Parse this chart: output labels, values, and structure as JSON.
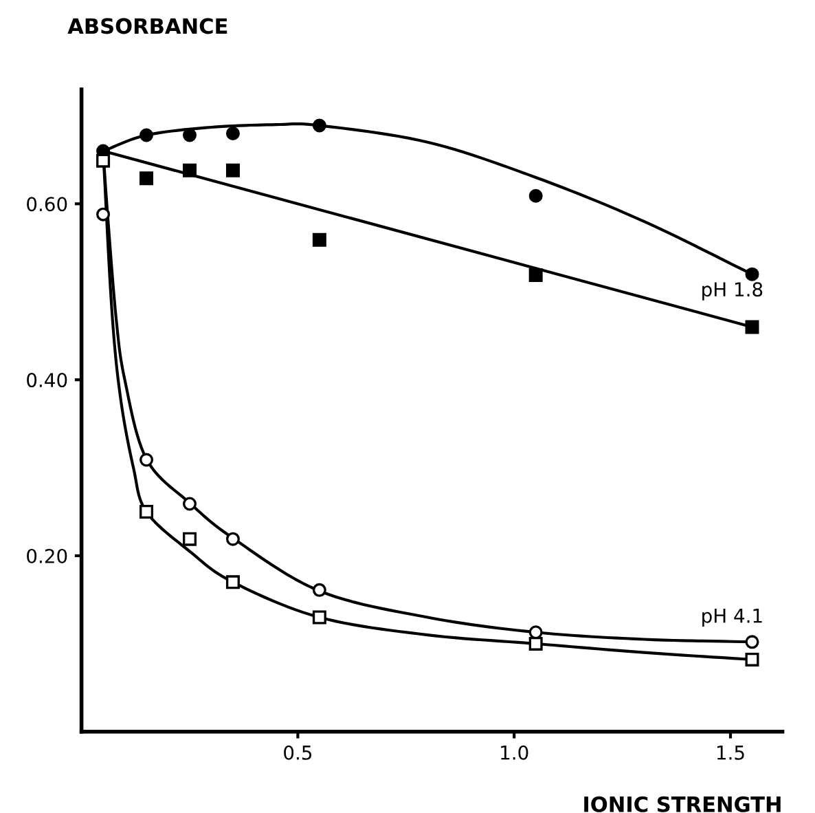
{
  "chart_data": {
    "type": "scatter",
    "xlabel": "IONIC STRENGTH",
    "ylabel": "ABSORBANCE",
    "xlim": [
      0,
      1.62
    ],
    "ylim": [
      0,
      0.73
    ],
    "xticks": [
      {
        "value": 0.5,
        "label": "0.5"
      },
      {
        "value": 1.0,
        "label": "1.0"
      },
      {
        "value": 1.5,
        "label": "1.5"
      }
    ],
    "yticks": [
      {
        "value": 0.2,
        "label": "0.20"
      },
      {
        "value": 0.4,
        "label": "0.40"
      },
      {
        "value": 0.6,
        "label": "0.60"
      }
    ],
    "grid": false,
    "x": [
      0.05,
      0.15,
      0.25,
      0.35,
      0.55,
      1.05,
      1.55
    ],
    "series": [
      {
        "color": "#000000",
        "marker": "circle",
        "values": [
          0.66,
          0.678,
          0.678,
          0.68,
          0.689,
          0.609,
          0.52
        ]
      },
      {
        "color": "#000000",
        "marker": "square",
        "values": [
          null,
          0.629,
          0.638,
          0.638,
          0.559,
          0.519,
          0.46
        ]
      },
      {
        "color": "#ffffff",
        "marker": "circle",
        "values": [
          0.588,
          0.309,
          0.259,
          0.219,
          0.161,
          0.113,
          0.102
        ]
      },
      {
        "color": "#ffffff",
        "marker": "square",
        "values": [
          0.649,
          0.25,
          0.219,
          0.17,
          0.13,
          0.1,
          0.082
        ]
      },
      {
        "type": "line",
        "color": "#000000",
        "marker": "none",
        "line_style": "solid",
        "x": [
          0.05,
          0.15,
          0.3,
          0.45,
          0.55,
          0.8,
          1.05,
          1.3,
          1.55
        ],
        "values": [
          0.66,
          0.678,
          0.687,
          0.69,
          0.689,
          0.67,
          0.63,
          0.58,
          0.52
        ]
      },
      {
        "type": "line",
        "color": "#000000",
        "marker": "none",
        "line_style": "solid",
        "x": [
          0.05,
          1.55
        ],
        "values": [
          0.66,
          0.46
        ]
      },
      {
        "type": "line",
        "color": "#000000",
        "marker": "none",
        "line_style": "solid",
        "x": [
          0.05,
          0.06,
          0.08,
          0.1,
          0.15,
          0.25,
          0.35,
          0.55,
          0.8,
          1.05,
          1.3,
          1.55
        ],
        "values": [
          0.66,
          0.59,
          0.47,
          0.4,
          0.31,
          0.26,
          0.22,
          0.16,
          0.13,
          0.113,
          0.105,
          0.102
        ]
      },
      {
        "type": "line",
        "color": "#000000",
        "marker": "none",
        "line_style": "solid",
        "x": [
          0.05,
          0.07,
          0.09,
          0.12,
          0.15,
          0.25,
          0.35,
          0.55,
          0.8,
          1.05,
          1.3,
          1.55
        ],
        "values": [
          0.66,
          0.48,
          0.38,
          0.3,
          0.25,
          0.205,
          0.17,
          0.13,
          0.11,
          0.1,
          0.09,
          0.082
        ]
      }
    ],
    "annotations": [
      "pH 1.8",
      "pH 4.1"
    ]
  }
}
